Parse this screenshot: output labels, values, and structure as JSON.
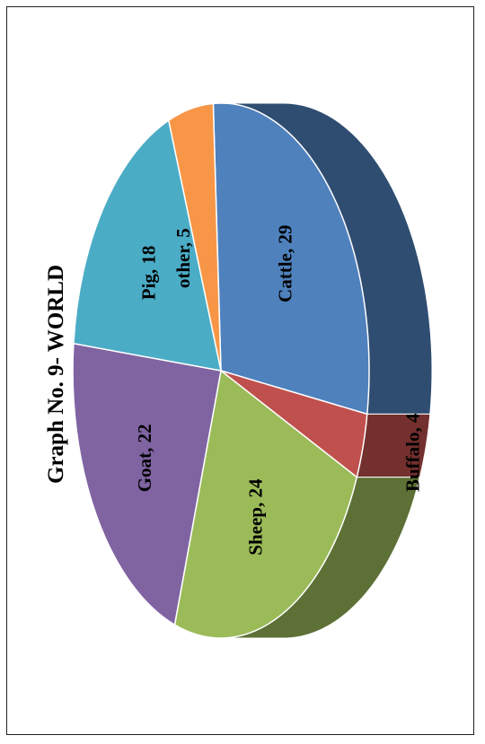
{
  "chart_data": {
    "type": "pie",
    "title": "Graph No. 9- WORLD",
    "categories": [
      "Cattle",
      "Buffalo",
      "Sheep",
      "Goat",
      "Pig",
      "other"
    ],
    "values": [
      29,
      4,
      24,
      22,
      18,
      5
    ],
    "labels": [
      "Cattle, 29",
      "Buffalo, 4",
      "Sheep, 24",
      "Goat, 22",
      "Pig, 18",
      "other, 5"
    ],
    "colors": [
      "#4F81BD",
      "#C0504D",
      "#9BBB59",
      "#8064A2",
      "#4BACC6",
      "#F79646"
    ],
    "rotated": true,
    "style": "3d-exploded"
  }
}
